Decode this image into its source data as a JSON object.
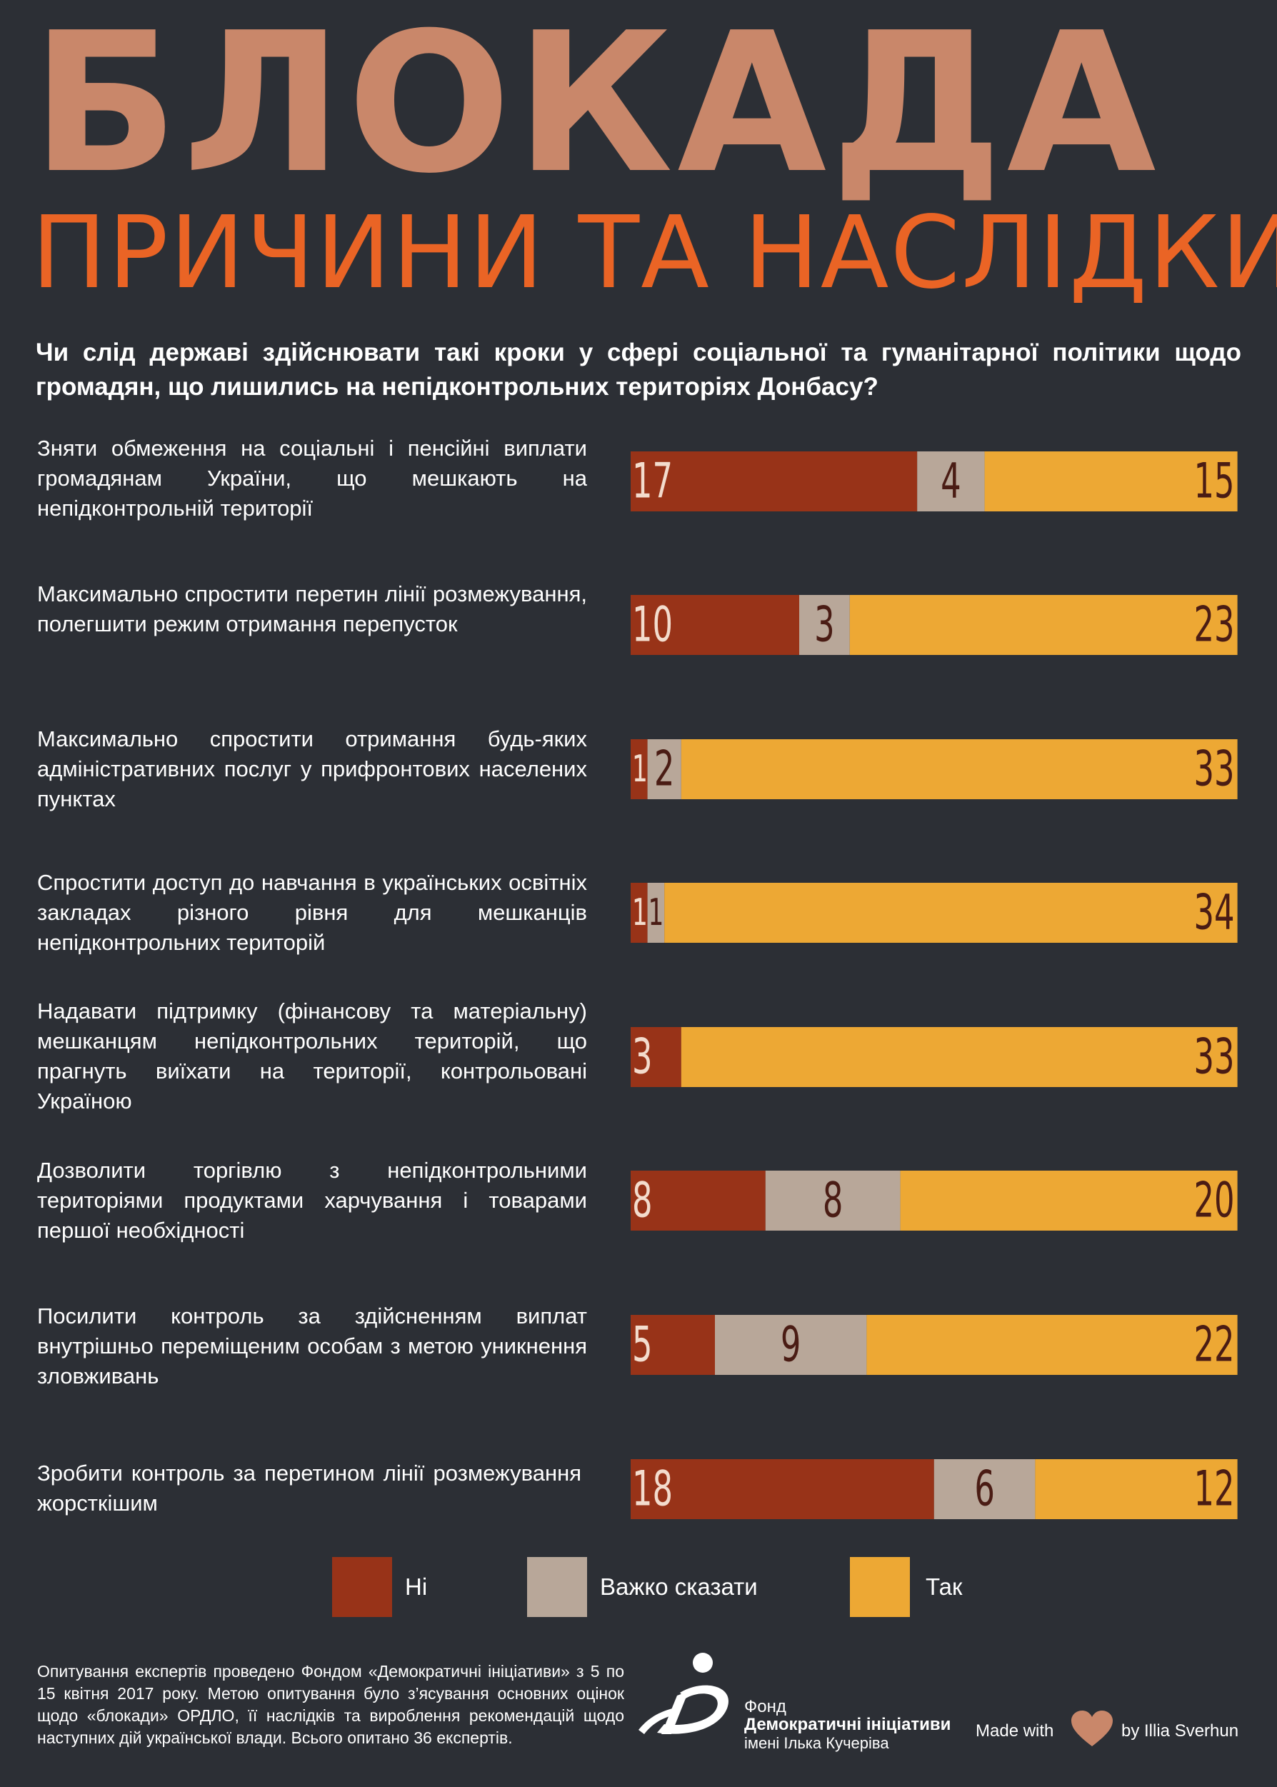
{
  "header": {
    "title": "БЛОКАДА",
    "subtitle": "ПРИЧИНИ ТА НАСЛІДКИ",
    "question": "Чи слід державі здійснювати такі кроки у сфері соціальної та гуманітарної політики щодо громадян, що лишились на непідконтрольних територіях Донбасу?"
  },
  "colors": {
    "background": "#2c2f35",
    "title": "#c9876a",
    "subtitle": "#ea6425",
    "no": "#983318",
    "hard_to_say": "#b8a799",
    "yes": "#eda834",
    "label_light": "#f3dccd",
    "label_dark": "#4a1c14"
  },
  "chart_data": {
    "type": "bar",
    "orientation": "horizontal-stacked",
    "categories": [
      "Зняти обмеження на соціальні і пенсійні виплати громадянам України, що мешкають на непідконтрольній території",
      "Максимально спростити перетин лінії розмежування, полегшити режим отримання перепусток",
      "Максимально спростити отримання будь-яких адміністративних послуг у прифронтових населених пунктах",
      "Спростити доступ до навчання в українських освітніх закладах різного рівня для мешканців непідконтрольних територій",
      "Надавати підтримку (фінансову та матеріальну) мешканцям непідконтрольних територій, що прагнуть виїхати на території, контрольовані Україною",
      "Дозволити торгівлю з непідконтрольними територіями продуктами харчування і товарами першої необхідності",
      "Посилити контроль за здійсненням виплат внутрішньо переміщеним особам з метою уникнення зловживань",
      "Зробити контроль за перетином лінії розмежування жорсткішим"
    ],
    "series": [
      {
        "name": "Ні",
        "color": "#983318",
        "values": [
          17,
          10,
          1,
          1,
          3,
          8,
          5,
          18
        ]
      },
      {
        "name": "Важко сказати",
        "color": "#b8a799",
        "values": [
          4,
          3,
          2,
          1,
          0,
          8,
          9,
          6
        ]
      },
      {
        "name": "Так",
        "color": "#eda834",
        "values": [
          15,
          23,
          33,
          34,
          33,
          20,
          22,
          12
        ]
      }
    ],
    "xlim": [
      0,
      36
    ],
    "legend": "bottom",
    "grid": false
  },
  "footer": {
    "note": "Опитування експертів проведено Фондом «Демократичні ініціативи» з 5 по 15 квітня 2017 року. Метою опитування було з’ясування основних оцінок щодо «блокади» ОРДЛО, її наслідків та вироблення рекомендацій щодо наступних дій української влади. Всього опитано 36 експертів.",
    "fund_line1": "Фонд",
    "fund_line2": "Демократичні ініціативи",
    "fund_line3": "імені Ілька Кучеріва",
    "made_with": "Made with",
    "author": "by Illia Sverhun"
  }
}
